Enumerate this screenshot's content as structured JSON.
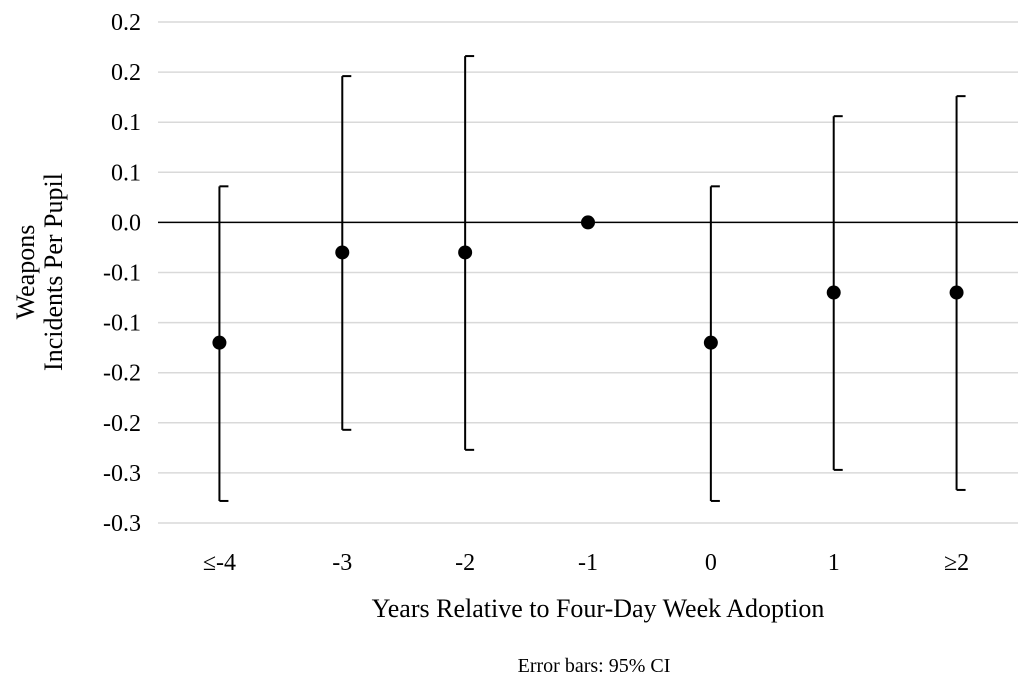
{
  "chart_data": {
    "type": "scatter",
    "title": "",
    "xlabel": "Years Relative to Four-Day Week Adoption",
    "ylabel_lines": [
      "Weapons",
      "Incidents Per Pupil"
    ],
    "footnote": "Error bars: 95% CI",
    "categories": [
      "≤-4",
      "-3",
      "-2",
      "-1",
      "0",
      "1",
      "≥2"
    ],
    "ylim": [
      -0.3,
      0.2
    ],
    "y_ticks": [
      0.2,
      0.15,
      0.1,
      0.05,
      0.0,
      -0.05,
      -0.1,
      -0.15,
      -0.2,
      -0.25,
      -0.3
    ],
    "y_tick_labels": [
      "0.2",
      "0.2",
      "0.1",
      "0.1",
      "0.0",
      "-0.1",
      "-0.1",
      "-0.2",
      "-0.2",
      "-0.3",
      "-0.3"
    ],
    "grid": true,
    "series": [
      {
        "values": [
          -0.12,
          -0.03,
          -0.03,
          0.0,
          -0.12,
          -0.07,
          -0.07
        ],
        "ci_low": [
          -0.278,
          -0.207,
          -0.227,
          0.0,
          -0.278,
          -0.247,
          -0.267
        ],
        "ci_high": [
          0.036,
          0.146,
          0.166,
          0.0,
          0.036,
          0.106,
          0.126
        ]
      }
    ],
    "colors": {
      "marker": "#000000",
      "grid": "#d9d9d9",
      "axis": "#000000"
    }
  }
}
